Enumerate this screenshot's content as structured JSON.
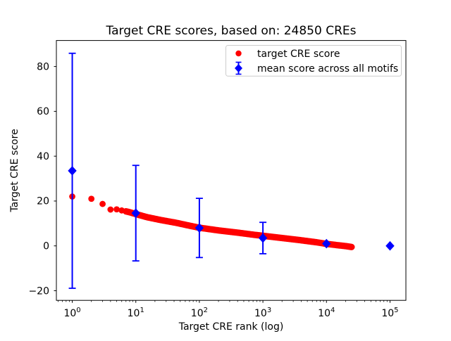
{
  "chart_data": {
    "type": "scatter",
    "title": "Target CRE scores, based on: 24850 CREs",
    "xlabel": "Target CRE rank (log)",
    "ylabel": "Target CRE score",
    "x_scale": "log",
    "x_log_range": [
      -0.25,
      5.25
    ],
    "ylim": [
      -24.3,
      91.6
    ],
    "x_ticks": [
      1,
      10,
      100,
      1000,
      10000,
      100000
    ],
    "x_tick_labels": [
      "10^0",
      "10^1",
      "10^2",
      "10^3",
      "10^4",
      "10^5"
    ],
    "y_ticks": [
      -20,
      0,
      20,
      40,
      60,
      80
    ],
    "y_tick_labels": [
      "−20",
      "0",
      "20",
      "40",
      "60",
      "80"
    ],
    "grid": false,
    "legend": {
      "position": "upper right",
      "entries": [
        {
          "label": "target CRE score",
          "marker": "circle",
          "color": "#ff0000"
        },
        {
          "label": "mean score across all motifs",
          "marker": "diamond-errorbar",
          "color": "#0000ff"
        }
      ]
    },
    "series": [
      {
        "name": "target CRE score",
        "type": "scatter-dense",
        "color": "#ff0000",
        "marker": "circle",
        "n_points": 24850,
        "anchor_points": [
          [
            1,
            22.0
          ],
          [
            2,
            21.0
          ],
          [
            3,
            18.7
          ],
          [
            4,
            16.2
          ],
          [
            5,
            16.3
          ],
          [
            6,
            15.8
          ],
          [
            7,
            15.4
          ],
          [
            8,
            15.0
          ],
          [
            10,
            14.2
          ],
          [
            15,
            12.8
          ],
          [
            25,
            11.5
          ],
          [
            43,
            10.3
          ],
          [
            70,
            9.0
          ],
          [
            100,
            8.1
          ],
          [
            200,
            6.9
          ],
          [
            400,
            5.9
          ],
          [
            700,
            5.0
          ],
          [
            1000,
            4.5
          ],
          [
            2000,
            3.5
          ],
          [
            4000,
            2.5
          ],
          [
            7000,
            1.6
          ],
          [
            10000,
            0.9
          ],
          [
            15000,
            0.3
          ],
          [
            20000,
            -0.1
          ],
          [
            24850,
            -0.5
          ]
        ]
      },
      {
        "name": "mean score across all motifs",
        "type": "errorbar",
        "color": "#0000ff",
        "marker": "diamond",
        "points": [
          [
            1,
            33.5
          ],
          [
            10,
            14.6
          ],
          [
            100,
            8.0
          ],
          [
            1000,
            3.5
          ],
          [
            10000,
            1.0
          ],
          [
            100000,
            0.0
          ]
        ],
        "yerr": [
          52.4,
          21.3,
          13.2,
          7.0,
          null,
          null
        ]
      }
    ]
  },
  "colors": {
    "red": "#ff0000",
    "blue": "#0000ff",
    "text": "#000000",
    "spine": "#000000",
    "legend_border": "#cccccc",
    "background": "#ffffff"
  }
}
